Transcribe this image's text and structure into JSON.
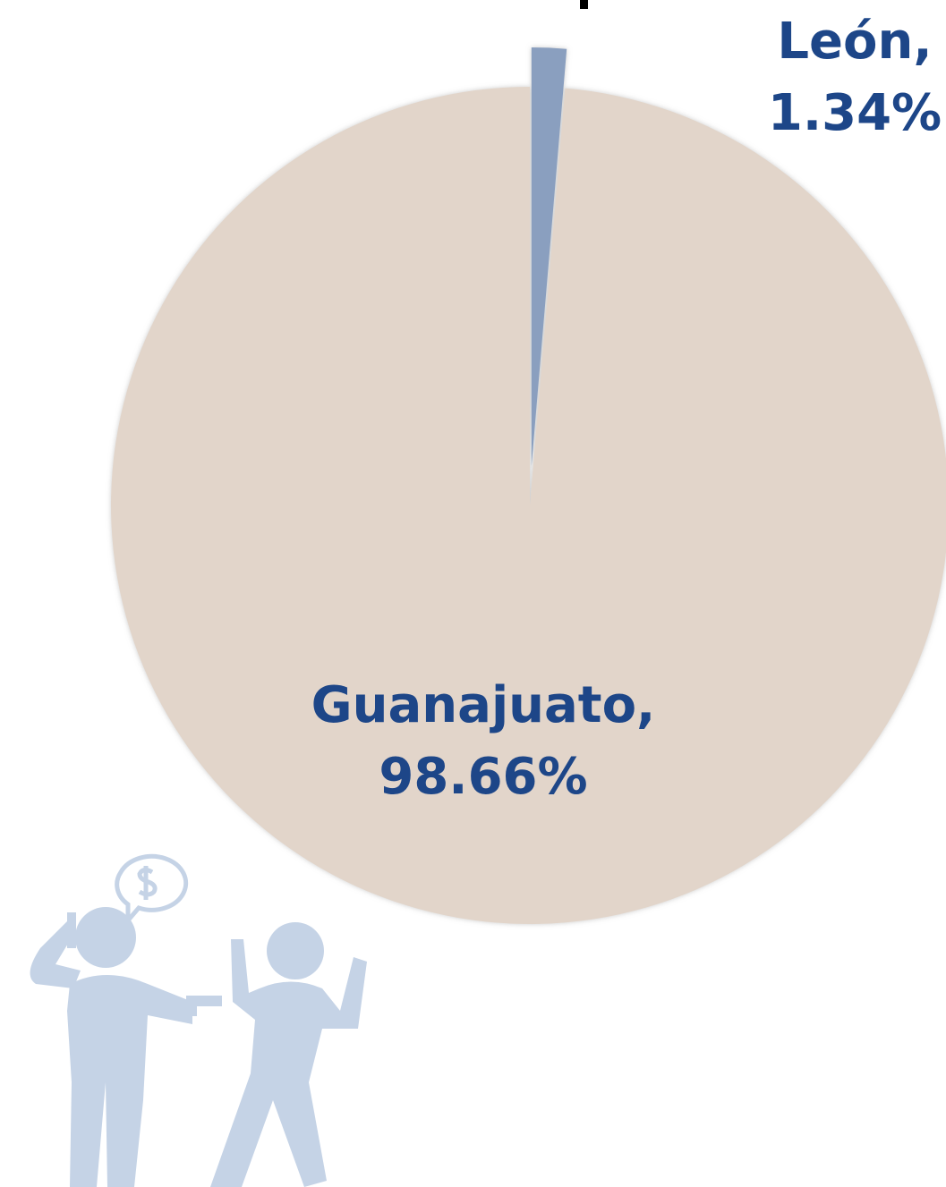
{
  "chart_data": {
    "type": "pie",
    "categories": [
      "León",
      "Guanajuato"
    ],
    "values": [
      1.34,
      98.66
    ],
    "value_labels": [
      "1.34%",
      "98.66%"
    ],
    "label_separator": ",",
    "colors": [
      "#8a9fbf",
      "#e2d5ca"
    ],
    "exploded": [
      true,
      false
    ],
    "label_color": "#1d4688"
  }
}
